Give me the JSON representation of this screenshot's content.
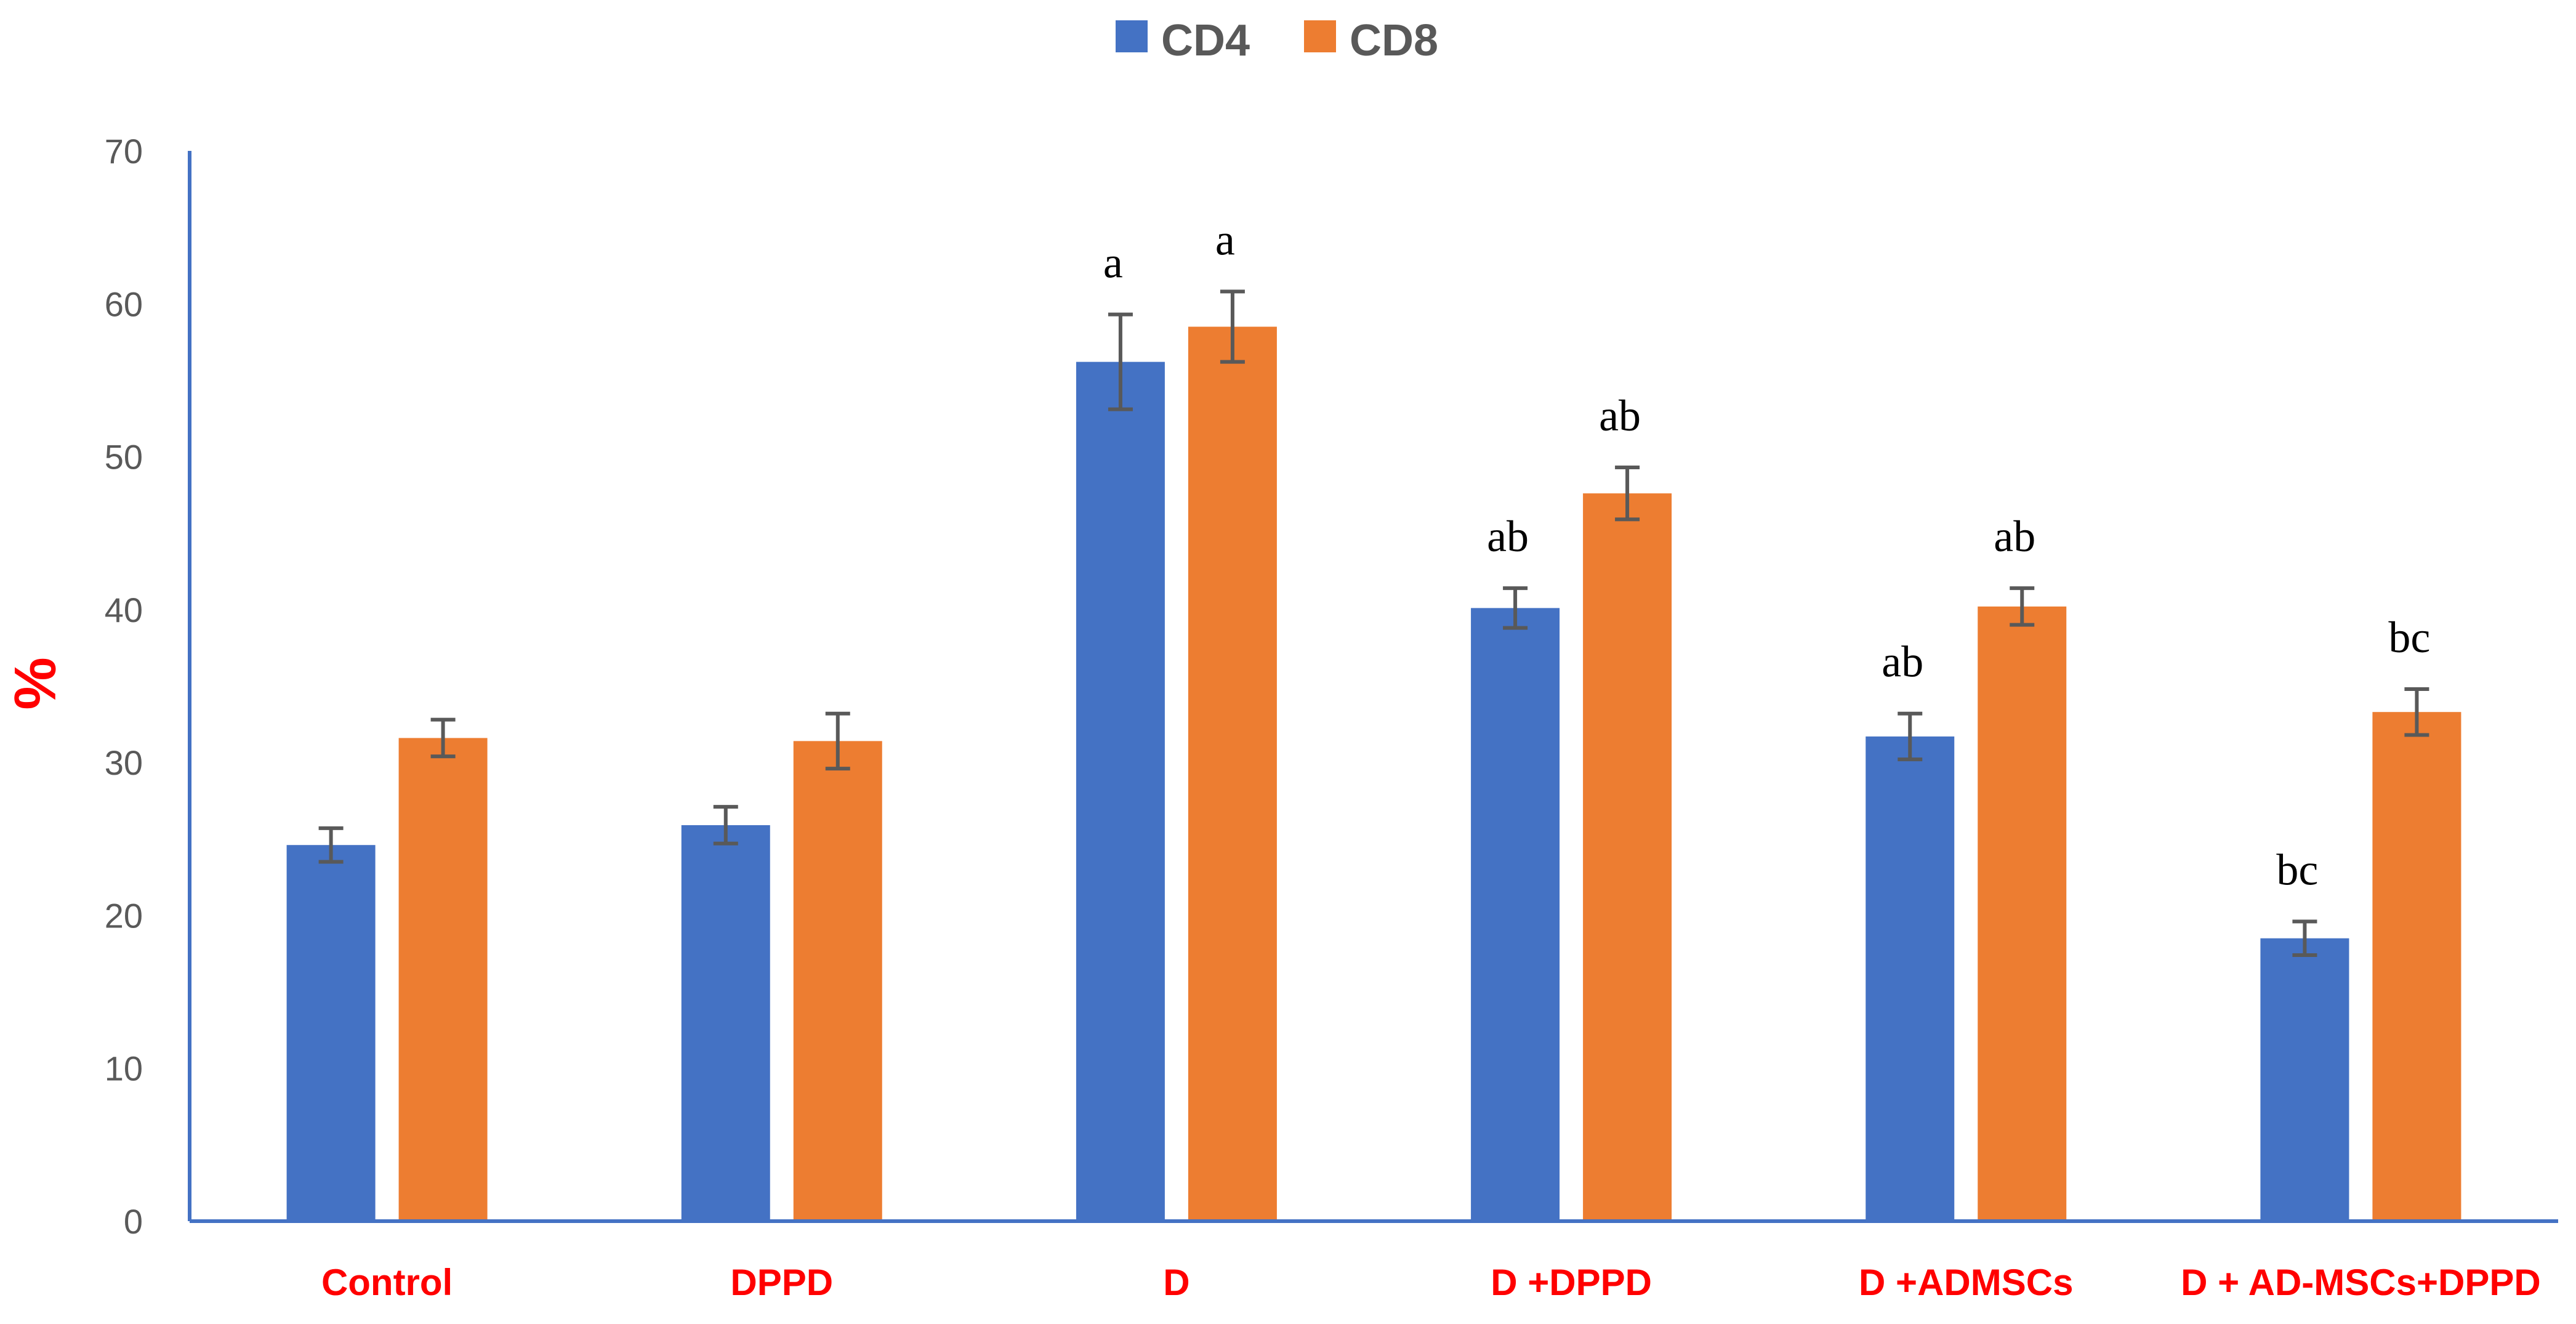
{
  "chart_data": {
    "type": "bar",
    "title": "",
    "xlabel": "",
    "ylabel": "%",
    "ylim": [
      0,
      70
    ],
    "yticks": [
      0,
      10,
      20,
      30,
      40,
      50,
      60,
      70
    ],
    "grid": false,
    "legend_position": "top-center",
    "categories": [
      "Control",
      "DPPD",
      "D",
      "D +DPPD",
      "D +ADMSCs",
      "D + AD-MSCs+DPPD"
    ],
    "series": [
      {
        "name": "CD4",
        "color": "#4472c4",
        "values": [
          24.6,
          25.9,
          56.2,
          40.1,
          31.7,
          18.5
        ],
        "errors": [
          1.1,
          1.2,
          3.1,
          1.3,
          1.5,
          1.1
        ],
        "annotations": [
          "",
          "",
          "a",
          "ab",
          "ab",
          "bc"
        ]
      },
      {
        "name": "CD8",
        "color": "#ed7d31",
        "values": [
          31.6,
          31.4,
          58.5,
          47.6,
          40.2,
          33.3
        ],
        "errors": [
          1.2,
          1.8,
          2.3,
          1.7,
          1.2,
          1.5
        ],
        "annotations": [
          "",
          "",
          "a",
          "ab",
          "ab",
          "bc"
        ]
      }
    ]
  },
  "colors": {
    "axis": "#4472c4",
    "error_bar": "#595959",
    "category_label": "#ff0000",
    "tick_label": "#595959"
  }
}
